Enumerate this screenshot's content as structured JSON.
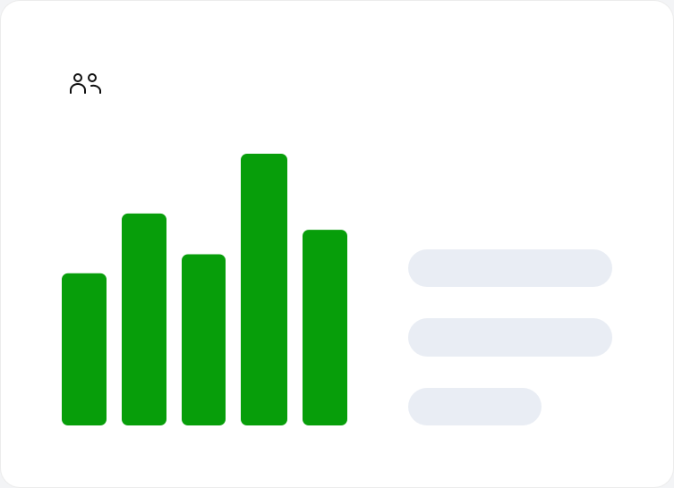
{
  "chart_data": {
    "type": "bar",
    "values": [
      56,
      78,
      63,
      100,
      72
    ],
    "color": "#079e0a"
  }
}
